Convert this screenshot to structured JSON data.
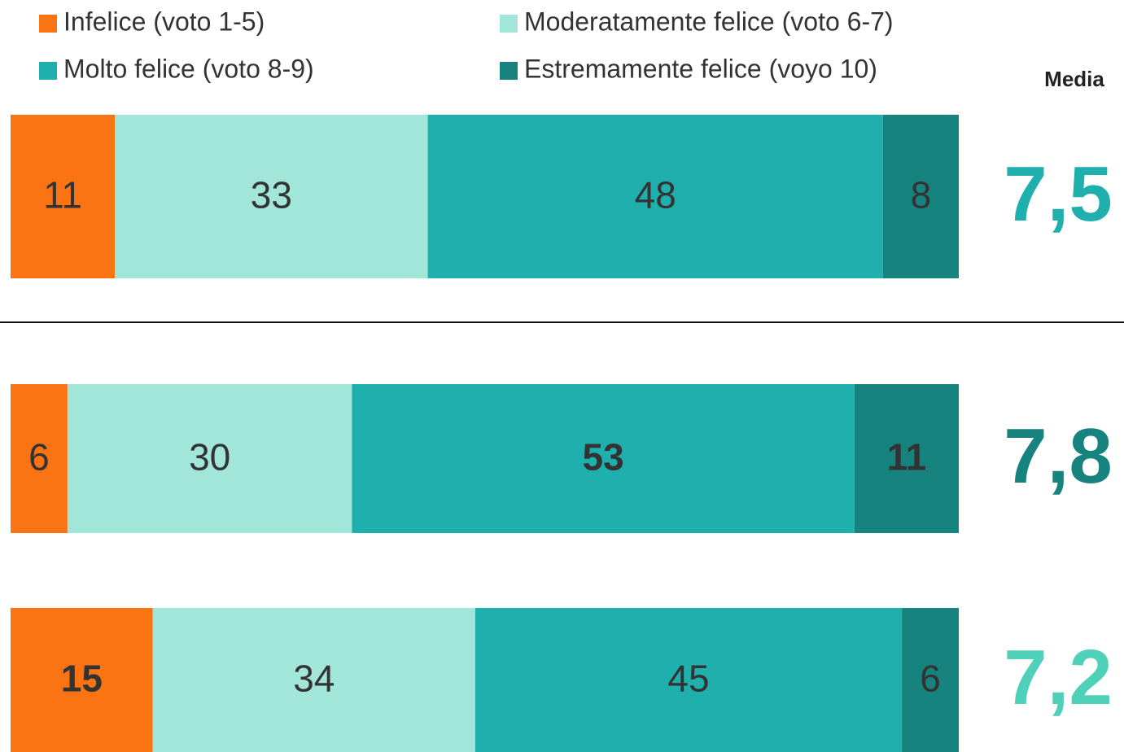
{
  "chart_data": {
    "type": "stacked-bar",
    "orientation": "horizontal",
    "categories": [
      null,
      null,
      null
    ],
    "xlim": [
      0,
      100
    ],
    "series": [
      {
        "name": "Infelice (voto 1-5)",
        "color": "#fa7414",
        "values": [
          11,
          6,
          15
        ],
        "bold": [
          false,
          false,
          true
        ]
      },
      {
        "name": "Moderatamente felice (voto 6-7)",
        "color": "#a2e6da",
        "values": [
          33,
          30,
          34
        ],
        "bold": [
          false,
          false,
          false
        ]
      },
      {
        "name": "Molto felice (voto 8-9)",
        "color": "#1fafad",
        "values": [
          48,
          53,
          45
        ],
        "bold": [
          false,
          true,
          false
        ]
      },
      {
        "name": "Estremamente felice (voyo 10)",
        "color": "#17837f",
        "values": [
          8,
          11,
          6
        ],
        "bold": [
          false,
          true,
          false
        ]
      }
    ],
    "media": {
      "title": "Media",
      "values": [
        7.5,
        7.8,
        7.2
      ],
      "value_labels": [
        "7,5",
        "7,8",
        "7,2"
      ],
      "colors": [
        "#1fafad",
        "#17837f",
        "#4fd1b9"
      ]
    }
  }
}
